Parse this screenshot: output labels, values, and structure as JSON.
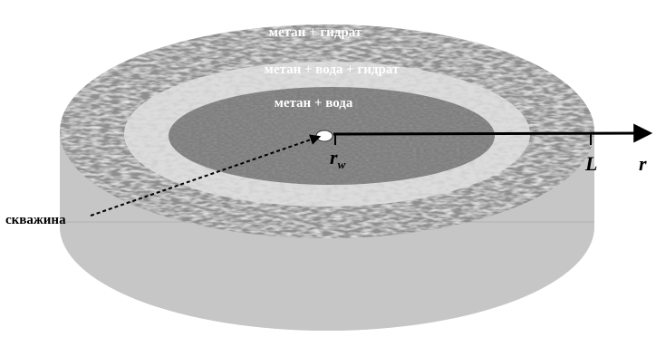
{
  "zones": {
    "outer_label": "метан + гидрат",
    "middle_label": "метан + вода + гидрат",
    "inner_label": "метан + вода"
  },
  "axis": {
    "r_label": "r",
    "rw_main": "r",
    "rw_sub": "w",
    "L_label": "L"
  },
  "well": {
    "label": "скважина"
  },
  "colors": {
    "outer_zone": "#8f8f8f",
    "middle_zone": "#dcdcdc",
    "inner_zone": "#7e7e7e",
    "cylinder_side": "#c6c6c6",
    "arrow": "#000000"
  }
}
